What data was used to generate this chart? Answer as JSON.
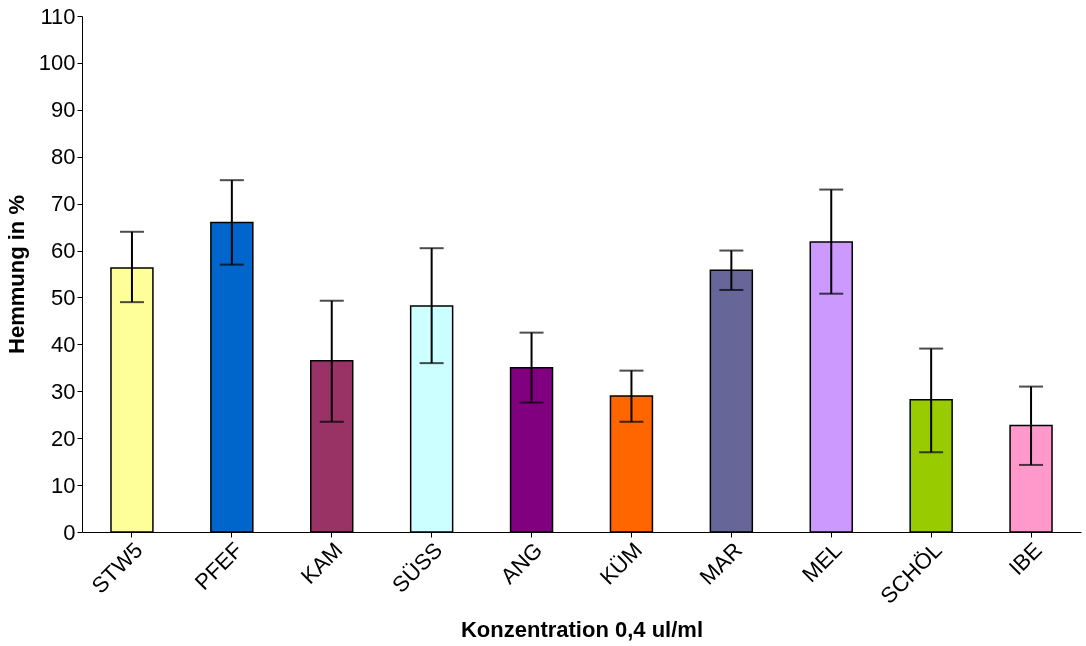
{
  "chart_data": {
    "type": "bar",
    "xlabel": "Konzentration 0,4 ul/ml",
    "ylabel": "Hemmung in %",
    "categories": [
      "STW5",
      "PFEF",
      "KAM",
      "SÜSS",
      "ANG",
      "KÜM",
      "MAR",
      "MEL",
      "SCHÖL",
      "IBE"
    ],
    "values": [
      56.3,
      66,
      36.5,
      48.2,
      35,
      29,
      55.8,
      61.8,
      28.2,
      22.7
    ],
    "colors": [
      "#ffff99",
      "#0066cc",
      "#993366",
      "#ccffff",
      "#800080",
      "#ff6600",
      "#666699",
      "#cc99ff",
      "#99cc00",
      "#ff99cc"
    ],
    "errors": [
      [
        49,
        64
      ],
      [
        57,
        75
      ],
      [
        23.5,
        49.3
      ],
      [
        36,
        60.5
      ],
      [
        27.6,
        42.5
      ],
      [
        23.5,
        34.4
      ],
      [
        51.6,
        60
      ],
      [
        50.8,
        73
      ],
      [
        17,
        39.1
      ],
      [
        14.3,
        31
      ]
    ],
    "ylim": [
      0,
      110
    ],
    "yticks": [
      0,
      10,
      20,
      30,
      40,
      50,
      60,
      70,
      80,
      90,
      100,
      110
    ],
    "grid": false
  }
}
